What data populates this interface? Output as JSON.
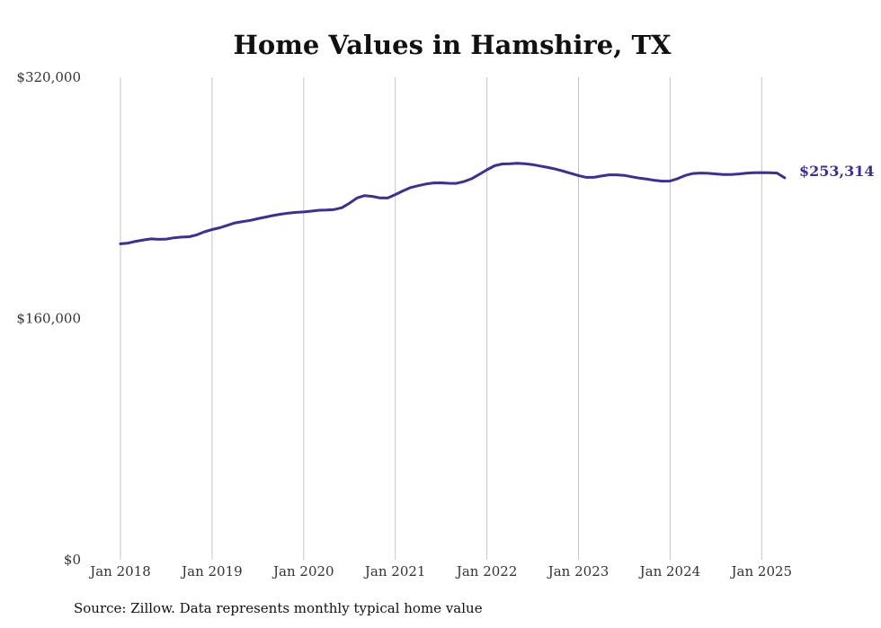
{
  "chart_data": {
    "type": "line",
    "title": "Home Values in Hamshire, TX",
    "xlabel": "",
    "ylabel": "",
    "ylim": [
      0,
      320000
    ],
    "yticks": [
      "$0",
      "$160,000",
      "$320,000"
    ],
    "ytick_values": [
      0,
      160000,
      320000
    ],
    "xticks": [
      "Jan 2018",
      "Jan 2019",
      "Jan 2020",
      "Jan 2021",
      "Jan 2022",
      "Jan 2023",
      "Jan 2024",
      "Jan 2025"
    ],
    "grid": "vertical",
    "line_color": "#3b3096",
    "end_label": "$253,314",
    "series": [
      {
        "x": [
          "2018-01",
          "2018-02",
          "2018-03",
          "2018-04",
          "2018-05",
          "2018-06",
          "2018-07",
          "2018-08",
          "2018-09",
          "2018-10",
          "2018-11",
          "2018-12",
          "2019-01",
          "2019-02",
          "2019-03",
          "2019-04",
          "2019-05",
          "2019-06",
          "2019-07",
          "2019-08",
          "2019-09",
          "2019-10",
          "2019-11",
          "2019-12",
          "2020-01",
          "2020-02",
          "2020-03",
          "2020-04",
          "2020-05",
          "2020-06",
          "2020-07",
          "2020-08",
          "2020-09",
          "2020-10",
          "2020-11",
          "2020-12",
          "2021-01",
          "2021-02",
          "2021-03",
          "2021-04",
          "2021-05",
          "2021-06",
          "2021-07",
          "2021-08",
          "2021-09",
          "2021-10",
          "2021-11",
          "2021-12",
          "2022-01",
          "2022-02",
          "2022-03",
          "2022-04",
          "2022-05",
          "2022-06",
          "2022-07",
          "2022-08",
          "2022-09",
          "2022-10",
          "2022-11",
          "2022-12",
          "2023-01",
          "2023-02",
          "2023-03",
          "2023-04",
          "2023-05",
          "2023-06",
          "2023-07",
          "2023-08",
          "2023-09",
          "2023-10",
          "2023-11",
          "2023-12",
          "2024-01",
          "2024-02",
          "2024-03",
          "2024-04",
          "2024-05",
          "2024-06",
          "2024-07",
          "2024-08",
          "2024-09",
          "2024-10",
          "2024-11",
          "2024-12",
          "2025-01",
          "2025-02",
          "2025-03",
          "2025-04"
        ],
        "values": [
          209500,
          210000,
          211200,
          212100,
          212800,
          212500,
          212700,
          213500,
          214000,
          214200,
          215500,
          217500,
          219000,
          220200,
          221800,
          223400,
          224300,
          225100,
          226200,
          227300,
          228300,
          229200,
          229900,
          230400,
          230700,
          231200,
          231800,
          232000,
          232300,
          233500,
          236500,
          240000,
          241500,
          241000,
          240000,
          239900,
          242200,
          244600,
          246800,
          248100,
          249200,
          249900,
          250000,
          249700,
          249600,
          250800,
          252700,
          255600,
          258600,
          261300,
          262500,
          262600,
          262900,
          262700,
          262100,
          261100,
          260200,
          259100,
          257700,
          256300,
          254800,
          253600,
          253600,
          254500,
          255300,
          255300,
          254900,
          254000,
          253100,
          252400,
          251600,
          251100,
          251200,
          252800,
          254900,
          256200,
          256500,
          256300,
          255900,
          255500,
          255500,
          255900,
          256400,
          256700,
          256800,
          256700,
          256500,
          253314
        ]
      }
    ]
  },
  "source_text": "Source: Zillow. Data represents monthly typical home value"
}
